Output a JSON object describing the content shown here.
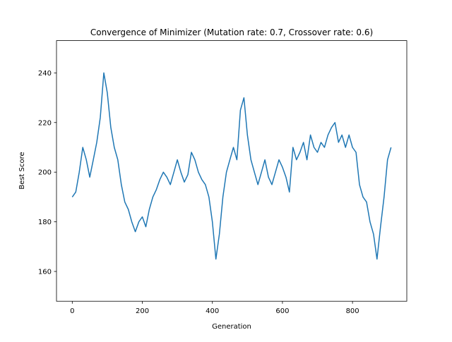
{
  "chart_data": {
    "type": "line",
    "title": "Convergence of Minimizer (Mutation rate: 0.7, Crossover rate: 0.6)",
    "xlabel": "Generation",
    "ylabel": "Best Score",
    "xlim": [
      -45,
      955
    ],
    "ylim": [
      148,
      253
    ],
    "xticks": [
      0,
      200,
      400,
      600,
      800
    ],
    "yticks": [
      160,
      180,
      200,
      220,
      240
    ],
    "grid": false,
    "line_color": "#1f77b4",
    "series": [
      {
        "x": [
          0,
          10,
          20,
          30,
          40,
          50,
          60,
          70,
          80,
          90,
          100,
          110,
          120,
          130,
          140,
          150,
          160,
          170,
          180,
          190,
          200,
          210,
          220,
          230,
          240,
          250,
          260,
          270,
          280,
          290,
          300,
          310,
          320,
          330,
          340,
          350,
          360,
          370,
          380,
          390,
          400,
          410,
          420,
          430,
          440,
          450,
          460,
          470,
          480,
          490,
          500,
          510,
          520,
          530,
          540,
          550,
          560,
          570,
          580,
          590,
          600,
          610,
          620,
          630,
          640,
          650,
          660,
          670,
          680,
          690,
          700,
          710,
          720,
          730,
          740,
          750,
          760,
          770,
          780,
          790,
          800,
          810,
          820,
          830,
          840,
          850,
          860,
          870,
          880,
          890,
          900,
          910
        ],
        "y": [
          190,
          192,
          200,
          210,
          205,
          198,
          205,
          212,
          222,
          240,
          232,
          218,
          210,
          205,
          195,
          188,
          185,
          180,
          176,
          180,
          182,
          178,
          185,
          190,
          193,
          197,
          200,
          198,
          195,
          200,
          205,
          200,
          196,
          199,
          208,
          205,
          200,
          197,
          195,
          190,
          180,
          165,
          175,
          190,
          200,
          205,
          210,
          205,
          225,
          230,
          215,
          205,
          200,
          195,
          200,
          205,
          198,
          195,
          200,
          205,
          202,
          198,
          192,
          210,
          205,
          208,
          212,
          205,
          215,
          210,
          208,
          212,
          210,
          215,
          218,
          220,
          212,
          215,
          210,
          215,
          210,
          208,
          195,
          190,
          188,
          180,
          175,
          165,
          178,
          190,
          205,
          210
        ]
      }
    ]
  }
}
